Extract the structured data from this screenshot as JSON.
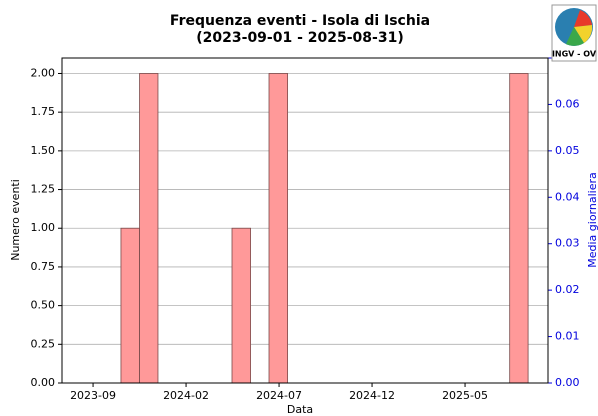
{
  "chart_data": {
    "type": "histogram",
    "title": "Frequenza eventi - Isola di Ischia",
    "subtitle": "(2023-09-01 - 2025-08-31)",
    "xlabel": "Data",
    "ylabel": "Numero eventi",
    "y2label": "Media giornaliera",
    "logo_text": "INGV - OV",
    "bins": [
      1.5,
      2.5,
      3.49,
      4.49,
      5.48,
      6.48,
      7.47,
      8.47,
      9.46,
      10.46,
      11.45,
      12.45,
      13.44,
      14.44,
      15.43,
      16.43,
      17.42,
      18.42,
      19.41,
      20.41,
      21.4,
      22.4,
      23.39
    ],
    "values": [
      1,
      2,
      0,
      0,
      0,
      0,
      1,
      0,
      2,
      0,
      0,
      0,
      0,
      0,
      0,
      0,
      0,
      0,
      0,
      0,
      0,
      2
    ],
    "color": "#ff9999",
    "edgecolor": "#7a4a4a",
    "y2color": "#0000dd",
    "xlim": [
      -1.67,
      24.46
    ],
    "xticks": [
      {
        "value": 0,
        "label": "2023-09"
      },
      {
        "value": 5,
        "label": "2024-02"
      },
      {
        "value": 10,
        "label": "2024-07"
      },
      {
        "value": 15,
        "label": "2024-12"
      },
      {
        "value": 20,
        "label": "2025-05"
      }
    ],
    "ylim": [
      0,
      2.1
    ],
    "yticks": [
      {
        "value": 0,
        "label": "0.00"
      },
      {
        "value": 0.25,
        "label": "0.25"
      },
      {
        "value": 0.5,
        "label": "0.50"
      },
      {
        "value": 0.75,
        "label": "0.75"
      },
      {
        "value": 1,
        "label": "1.00"
      },
      {
        "value": 1.25,
        "label": "1.25"
      },
      {
        "value": 1.5,
        "label": "1.50"
      },
      {
        "value": 1.75,
        "label": "1.75"
      },
      {
        "value": 2,
        "label": "2.00"
      }
    ],
    "y2lim": [
      0,
      0.07
    ],
    "y2ticks": [
      {
        "value": 0,
        "label": "0.00"
      },
      {
        "value": 0.01,
        "label": "0.01"
      },
      {
        "value": 0.02,
        "label": "0.02"
      },
      {
        "value": 0.03,
        "label": "0.03"
      },
      {
        "value": 0.04,
        "label": "0.04"
      },
      {
        "value": 0.05,
        "label": "0.05"
      },
      {
        "value": 0.06,
        "label": "0.06"
      },
      {
        "value": 0.07,
        "label": "0.07"
      }
    ],
    "grid": true
  }
}
